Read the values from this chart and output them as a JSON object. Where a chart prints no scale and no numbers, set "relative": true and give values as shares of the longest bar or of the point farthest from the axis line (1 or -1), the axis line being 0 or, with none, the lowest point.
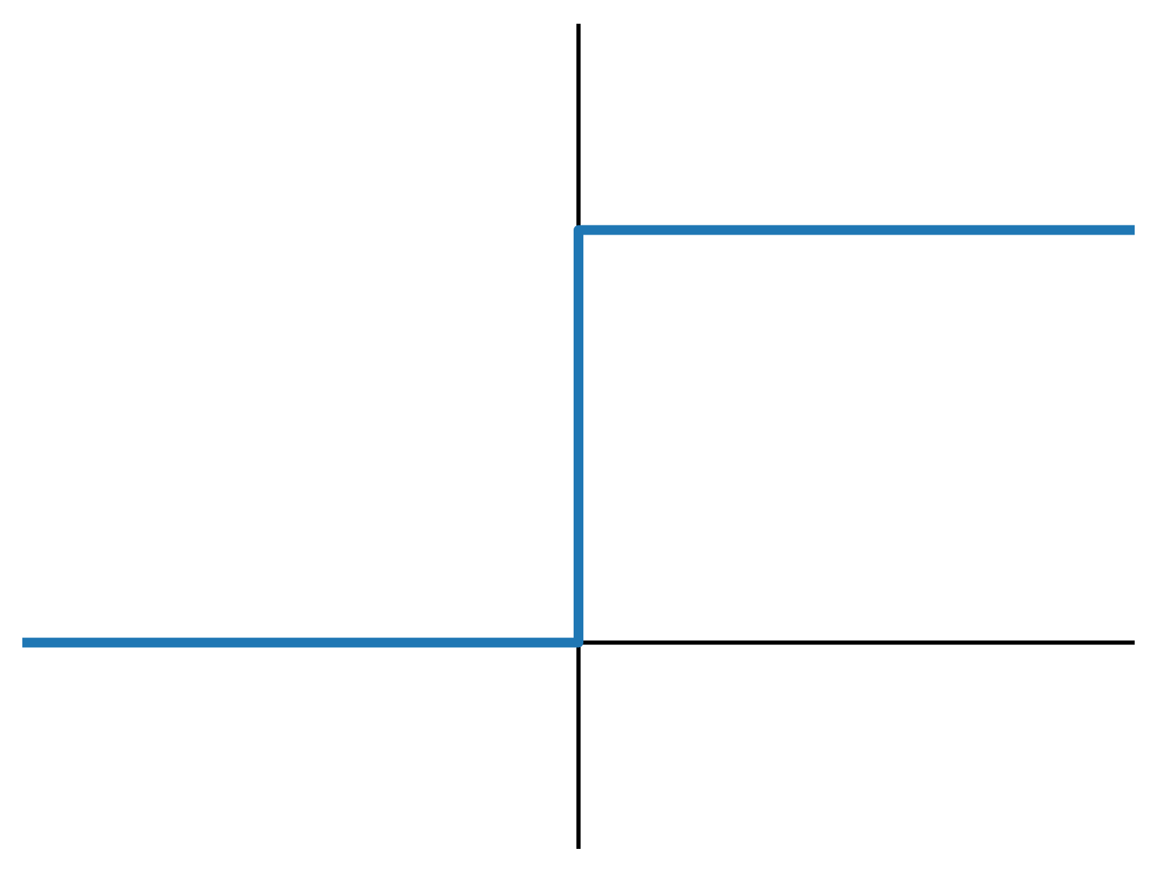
{
  "chart_data": {
    "type": "step",
    "relative": true,
    "categories": [
      null,
      null,
      null
    ],
    "values": [
      0,
      1,
      1
    ],
    "color": "#1f77b4",
    "marker": "none",
    "legend": false,
    "grid": false
  }
}
